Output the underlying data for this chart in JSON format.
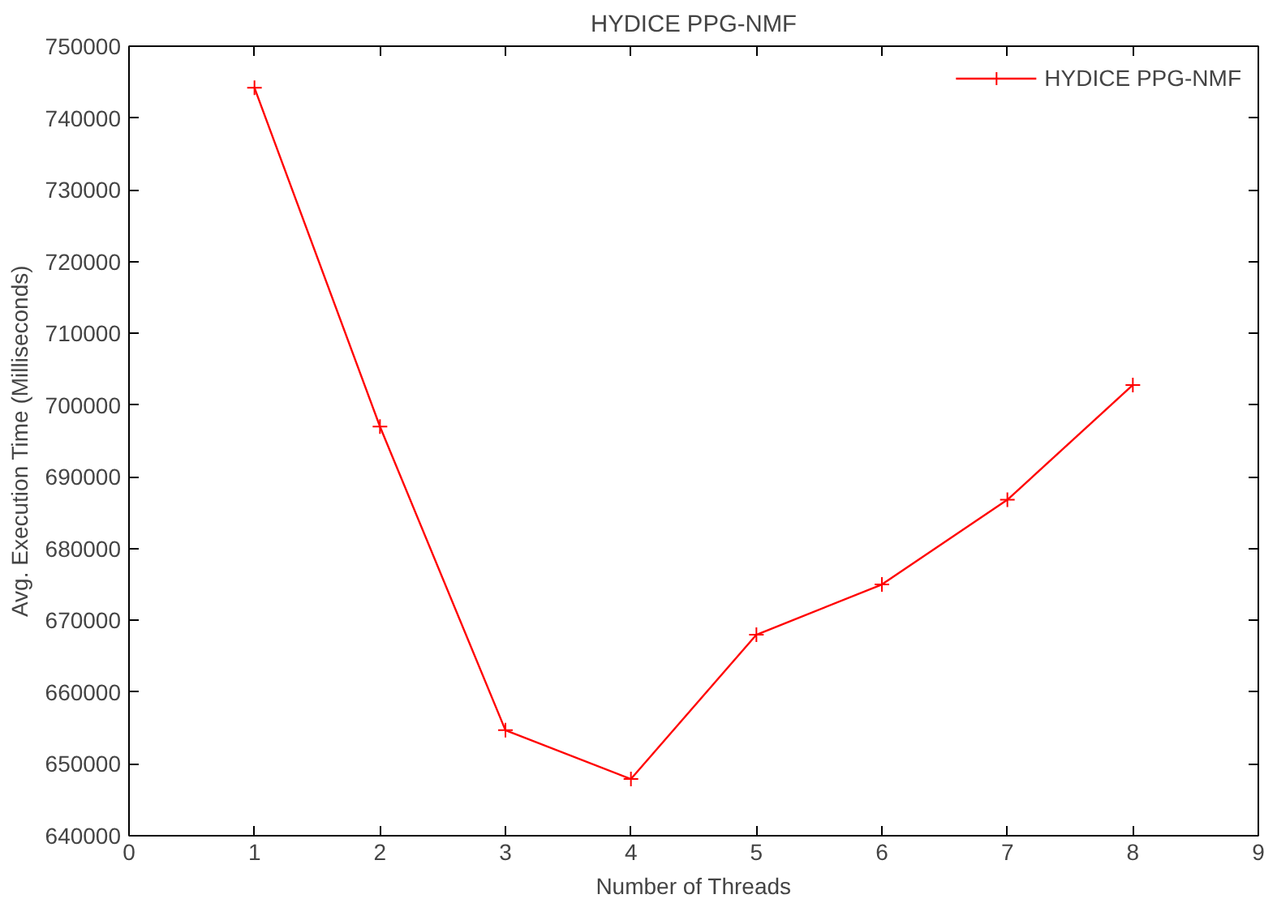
{
  "chart_data": {
    "type": "line",
    "title": "HYDICE PPG-NMF",
    "xlabel": "Number of Threads",
    "ylabel": "Avg. Execution Time (Milliseconds)",
    "x": [
      1,
      2,
      3,
      4,
      5,
      6,
      7,
      8
    ],
    "series": [
      {
        "name": "HYDICE PPG-NMF",
        "color": "#ff0000",
        "values": [
          744200,
          697000,
          654700,
          647900,
          668000,
          675000,
          686800,
          702800
        ]
      }
    ],
    "xlim": [
      0,
      9
    ],
    "xticks": [
      0,
      1,
      2,
      3,
      4,
      5,
      6,
      7,
      8,
      9
    ],
    "ylim": [
      640000,
      750000
    ],
    "yticks": [
      640000,
      650000,
      660000,
      670000,
      680000,
      690000,
      700000,
      710000,
      720000,
      730000,
      740000,
      750000
    ],
    "grid": false,
    "legend": "top right",
    "marker": "cross",
    "line_style": "solid"
  }
}
